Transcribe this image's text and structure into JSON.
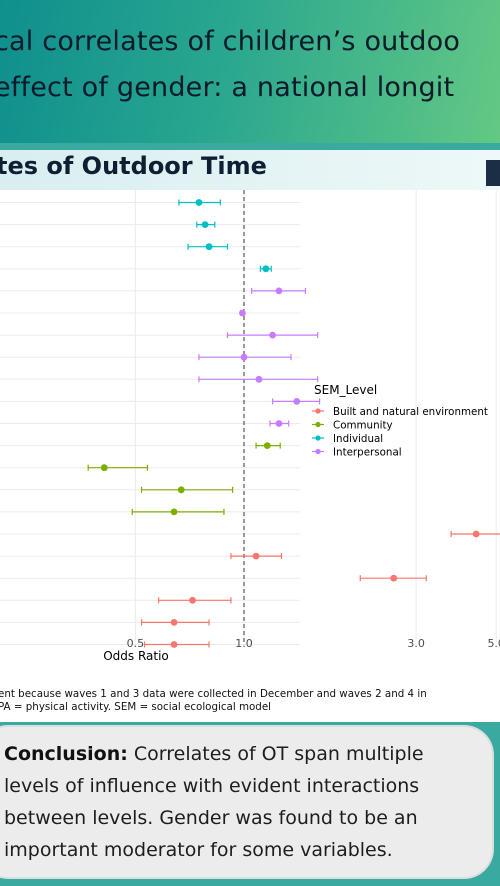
{
  "header": {
    "title_line1": "cal correlates of children’s outdoo",
    "title_line2": "effect of gender: a national longit"
  },
  "panel": {
    "title": "tes of Outdoor Time"
  },
  "chart_data": {
    "type": "scatter",
    "subtype": "forest-plot",
    "xlabel": "Odds Ratio",
    "xscale": "log",
    "xlim": [
      0.38,
      6.0
    ],
    "xticks": [
      0.5,
      1.0,
      3.0,
      5.0
    ],
    "xtick_labels": [
      "0.5",
      "1.0",
      "3.0",
      "5.0"
    ],
    "reference_line": 1.0,
    "legend": {
      "title": "SEM_Level",
      "position": "right",
      "entries": [
        {
          "label": "Built and natural environment",
          "color": "#f8766d"
        },
        {
          "label": "Community",
          "color": "#7cae00"
        },
        {
          "label": "Individual",
          "color": "#00bfc4"
        },
        {
          "label": "Interpersonal",
          "color": "#c77cff"
        }
      ]
    },
    "points": [
      {
        "level": "Individual",
        "or": 0.75,
        "lo": 0.66,
        "hi": 0.86
      },
      {
        "level": "Individual",
        "or": 0.78,
        "lo": 0.74,
        "hi": 0.83
      },
      {
        "level": "Individual",
        "or": 0.8,
        "lo": 0.7,
        "hi": 0.9
      },
      {
        "level": "Individual",
        "or": 1.15,
        "lo": 1.11,
        "hi": 1.19
      },
      {
        "level": "Interpersonal",
        "or": 1.25,
        "lo": 1.05,
        "hi": 1.48
      },
      {
        "level": "Interpersonal",
        "or": 0.99,
        "lo": 0.98,
        "hi": 1.0
      },
      {
        "level": "Interpersonal",
        "or": 1.2,
        "lo": 0.9,
        "hi": 1.6
      },
      {
        "level": "Interpersonal",
        "or": 1.0,
        "lo": 0.75,
        "hi": 1.35
      },
      {
        "level": "Interpersonal",
        "or": 1.1,
        "lo": 0.75,
        "hi": 1.6
      },
      {
        "level": "Interpersonal",
        "or": 1.4,
        "lo": 1.2,
        "hi": 1.62
      },
      {
        "level": "Interpersonal",
        "or": 1.25,
        "lo": 1.18,
        "hi": 1.33
      },
      {
        "level": "Community",
        "or": 1.16,
        "lo": 1.08,
        "hi": 1.26
      },
      {
        "level": "Community",
        "or": 0.41,
        "lo": 0.37,
        "hi": 0.54
      },
      {
        "level": "Community",
        "or": 0.67,
        "lo": 0.52,
        "hi": 0.93
      },
      {
        "level": "Community",
        "or": 0.64,
        "lo": 0.49,
        "hi": 0.88
      },
      {
        "level": "Built and natural environment",
        "or": 4.4,
        "lo": 3.75,
        "hi": 5.3
      },
      {
        "level": "Built and natural environment",
        "or": 1.08,
        "lo": 0.92,
        "hi": 1.27
      },
      {
        "level": "Built and natural environment",
        "or": 2.6,
        "lo": 2.1,
        "hi": 3.2
      },
      {
        "level": "Built and natural environment",
        "or": 0.72,
        "lo": 0.58,
        "hi": 0.92
      },
      {
        "level": "Built and natural environment",
        "or": 0.64,
        "lo": 0.52,
        "hi": 0.8
      },
      {
        "level": "Built and natural environment",
        "or": 0.64,
        "lo": 0.53,
        "hi": 0.8
      }
    ]
  },
  "footnote": {
    "line1": "ent because waves 1 and 3 data were collected in December and waves 2 and 4 in",
    "line2": "PA = physical activity. SEM = social ecological model"
  },
  "conclusion": {
    "label": "Conclusion:",
    "line1_rest": " Correlates of OT span multiple",
    "line2": "levels of influence with evident interactions",
    "line3": "between levels. Gender was found to be an",
    "line4": "important moderator for some variables."
  }
}
